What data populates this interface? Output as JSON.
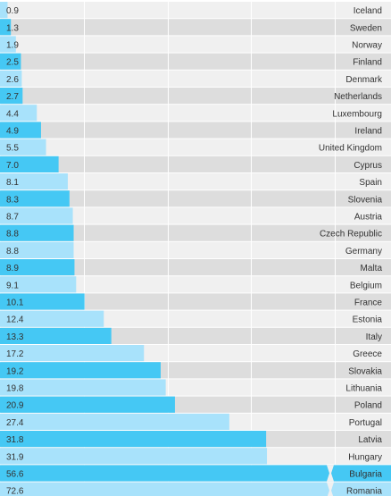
{
  "chart_data": {
    "type": "bar",
    "orientation": "horizontal",
    "categories": [
      "Iceland",
      "Sweden",
      "Norway",
      "Finland",
      "Denmark",
      "Netherlands",
      "Luxembourg",
      "Ireland",
      "United Kingdom",
      "Cyprus",
      "Spain",
      "Slovenia",
      "Austria",
      "Czech Republic",
      "Germany",
      "Malta",
      "Belgium",
      "France",
      "Estonia",
      "Italy",
      "Greece",
      "Slovakia",
      "Lithuania",
      "Poland",
      "Portugal",
      "Latvia",
      "Hungary",
      "Bulgaria",
      "Romania"
    ],
    "values": [
      0.9,
      1.3,
      1.9,
      2.5,
      2.6,
      2.7,
      4.4,
      4.9,
      5.5,
      7.0,
      8.1,
      8.3,
      8.7,
      8.8,
      8.8,
      8.9,
      9.1,
      10.1,
      12.4,
      13.3,
      17.2,
      19.2,
      19.8,
      20.9,
      27.4,
      31.8,
      31.9,
      56.6,
      72.6
    ],
    "value_labels": [
      "0.9",
      "1.3",
      "1.9",
      "2.5",
      "2.6",
      "2.7",
      "4.4",
      "4.9",
      "5.5",
      "7.0",
      "8.1",
      "8.3",
      "8.7",
      "8.8",
      "8.8",
      "8.9",
      "9.1",
      "10.1",
      "12.4",
      "13.3",
      "17.2",
      "19.2",
      "19.8",
      "20.9",
      "27.4",
      "31.8",
      "31.9",
      "56.6",
      "72.6"
    ],
    "xlim": [
      0,
      40
    ],
    "axis_break": true,
    "grid": true,
    "legend": "none",
    "highlight_rule": "alternating rows",
    "colors": {
      "bar_dark": "#45c8f4",
      "bar_light": "#a8e2fb",
      "row_dark": "#dddddd",
      "row_light": "#f0f0f0",
      "grid": "#ffffff",
      "text": "#333333"
    }
  }
}
